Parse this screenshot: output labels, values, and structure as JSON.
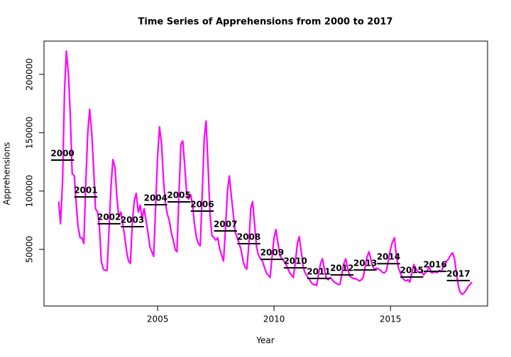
{
  "chart_data": {
    "type": "line",
    "title": "Time Series of Apprehensions from 2000 to 2017",
    "xlabel": "Year",
    "ylabel": "Apprehensions",
    "x": [
      2000.75,
      2000.83,
      2000.92,
      2001,
      2001.08,
      2001.17,
      2001.25,
      2001.33,
      2001.42,
      2001.5,
      2001.58,
      2001.67,
      2001.75,
      2001.83,
      2001.92,
      2002,
      2002.08,
      2002.17,
      2002.25,
      2002.33,
      2002.42,
      2002.5,
      2002.58,
      2002.67,
      2002.75,
      2002.83,
      2002.92,
      2003,
      2003.08,
      2003.17,
      2003.25,
      2003.33,
      2003.42,
      2003.5,
      2003.58,
      2003.67,
      2003.75,
      2003.83,
      2003.92,
      2004,
      2004.08,
      2004.17,
      2004.25,
      2004.33,
      2004.42,
      2004.5,
      2004.58,
      2004.67,
      2004.75,
      2004.83,
      2004.92,
      2005,
      2005.08,
      2005.17,
      2005.25,
      2005.33,
      2005.42,
      2005.5,
      2005.58,
      2005.67,
      2005.75,
      2005.83,
      2005.92,
      2006,
      2006.08,
      2006.17,
      2006.25,
      2006.33,
      2006.42,
      2006.5,
      2006.58,
      2006.67,
      2006.75,
      2006.83,
      2006.92,
      2007,
      2007.08,
      2007.17,
      2007.25,
      2007.33,
      2007.42,
      2007.5,
      2007.58,
      2007.67,
      2007.75,
      2007.83,
      2007.92,
      2008,
      2008.08,
      2008.17,
      2008.25,
      2008.33,
      2008.42,
      2008.5,
      2008.58,
      2008.67,
      2008.75,
      2008.83,
      2008.92,
      2009,
      2009.08,
      2009.17,
      2009.25,
      2009.33,
      2009.42,
      2009.5,
      2009.58,
      2009.67,
      2009.75,
      2009.83,
      2009.92,
      2010,
      2010.08,
      2010.17,
      2010.25,
      2010.33,
      2010.42,
      2010.5,
      2010.58,
      2010.67,
      2010.75,
      2010.83,
      2010.92,
      2011,
      2011.08,
      2011.17,
      2011.25,
      2011.33,
      2011.42,
      2011.5,
      2011.58,
      2011.67,
      2011.75,
      2011.83,
      2011.92,
      2012,
      2012.08,
      2012.17,
      2012.25,
      2012.33,
      2012.42,
      2012.5,
      2012.58,
      2012.67,
      2012.75,
      2012.83,
      2012.92,
      2013,
      2013.08,
      2013.17,
      2013.25,
      2013.33,
      2013.42,
      2013.5,
      2013.58,
      2013.67,
      2013.75,
      2013.83,
      2013.92,
      2014,
      2014.08,
      2014.17,
      2014.25,
      2014.33,
      2014.42,
      2014.5,
      2014.58,
      2014.67,
      2014.75,
      2014.83,
      2014.92,
      2015,
      2015.08,
      2015.17,
      2015.25,
      2015.33,
      2015.42,
      2015.5,
      2015.58,
      2015.67,
      2015.75,
      2015.83,
      2015.92,
      2016,
      2016.08,
      2016.17,
      2016.25,
      2016.33,
      2016.42,
      2016.5,
      2016.58,
      2016.67,
      2016.75,
      2016.83,
      2016.92,
      2017,
      2017.08,
      2017.17,
      2017.25,
      2017.33,
      2017.42,
      2017.5,
      2017.58,
      2017.67,
      2017.75,
      2017.83,
      2017.92,
      2018,
      2018.08,
      2018.17,
      2018.25,
      2018.33,
      2018.42,
      2018.5
    ],
    "values": [
      91000,
      72000,
      110000,
      185000,
      220000,
      200000,
      165000,
      115000,
      113000,
      90000,
      70000,
      60000,
      60000,
      55000,
      110000,
      150000,
      170000,
      150000,
      120000,
      85000,
      82000,
      70000,
      40000,
      33000,
      32000,
      32000,
      70000,
      105000,
      127000,
      120000,
      95000,
      78000,
      82000,
      72000,
      62000,
      48000,
      40000,
      38000,
      75000,
      92000,
      98000,
      82000,
      88000,
      76000,
      85000,
      75000,
      65000,
      52000,
      48000,
      44000,
      90000,
      130000,
      155000,
      140000,
      110000,
      90000,
      80000,
      75000,
      65000,
      58000,
      50000,
      48000,
      100000,
      140000,
      143000,
      120000,
      97000,
      93000,
      97000,
      88000,
      72000,
      60000,
      55000,
      53000,
      100000,
      145000,
      160000,
      120000,
      80000,
      62000,
      60000,
      58000,
      60000,
      50000,
      45000,
      40000,
      70000,
      100000,
      113000,
      95000,
      80000,
      65000,
      60000,
      55000,
      50000,
      40000,
      35000,
      33000,
      55000,
      85000,
      91000,
      70000,
      52000,
      45000,
      42000,
      40000,
      35000,
      30000,
      28000,
      26000,
      45000,
      60000,
      67000,
      55000,
      45000,
      42000,
      40000,
      38000,
      34000,
      30000,
      28000,
      26000,
      40000,
      55000,
      61000,
      48000,
      35000,
      30000,
      27000,
      25000,
      22000,
      20000,
      20000,
      19000,
      30000,
      38000,
      42000,
      32000,
      25000,
      24000,
      26000,
      24000,
      22000,
      21000,
      20000,
      20000,
      30000,
      38000,
      42000,
      33000,
      27000,
      26000,
      25000,
      25000,
      24000,
      23000,
      24000,
      26000,
      36000,
      44000,
      48000,
      40000,
      35000,
      33000,
      34000,
      33000,
      32000,
      30000,
      30000,
      32000,
      42000,
      50000,
      56000,
      60000,
      45000,
      35000,
      30000,
      26000,
      24000,
      23000,
      24000,
      22000,
      30000,
      37000,
      34000,
      31000,
      30000,
      31000,
      28000,
      30000,
      32000,
      35000,
      30000,
      30000,
      31000,
      30000,
      32000,
      31000,
      34000,
      37000,
      40000,
      42000,
      45000,
      47000,
      42000,
      30000,
      18000,
      13000,
      11500,
      13000,
      15000,
      18000,
      20000,
      22000
    ],
    "color": "#ff00ff",
    "annual": {
      "labels": [
        2000,
        2001,
        2002,
        2003,
        2004,
        2005,
        2006,
        2007,
        2008,
        2009,
        2010,
        2011,
        2012,
        2013,
        2014,
        2015,
        2016,
        2017
      ],
      "values": [
        126500,
        95000,
        72000,
        69500,
        88300,
        90700,
        82800,
        65800,
        54900,
        41500,
        34200,
        25100,
        28100,
        32400,
        37800,
        26300,
        31200,
        23300
      ],
      "color": "#000000"
    },
    "xlim": [
      2000.12,
      2019.17
    ],
    "ylim": [
      1500,
      228500
    ],
    "xticks": [
      2005,
      2010,
      2015
    ],
    "yticks": [
      50000,
      100000,
      150000,
      200000
    ]
  }
}
